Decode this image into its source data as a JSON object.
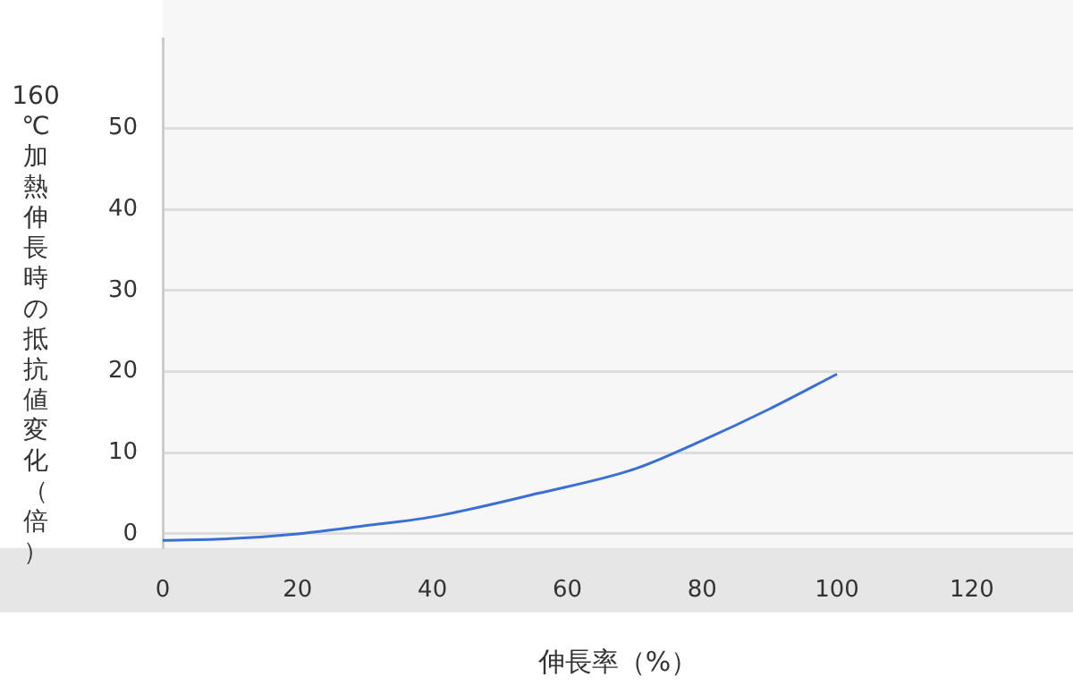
{
  "chart_data": {
    "type": "line",
    "xlabel": "伸長率（%）",
    "ylabel": "160℃加熱伸長時の抵抗値変化（倍）",
    "series": [
      {
        "color": "#3b6fd4",
        "x": [
          0,
          10,
          20,
          30,
          40,
          55.7,
          70,
          80,
          90,
          100
        ],
        "values": [
          -0.8,
          -0.6,
          0,
          1,
          2.1,
          5,
          8,
          11.5,
          15.4,
          19.7
        ]
      }
    ],
    "xlim": [
      0,
      135
    ],
    "xticks": [
      0,
      20,
      40,
      60,
      80,
      100,
      120
    ],
    "ylim": [
      -1.75,
      61
    ],
    "yticks": [
      0,
      10,
      20,
      30,
      40,
      50
    ],
    "grid": "y",
    "legend": false,
    "marker": "none",
    "line_style": "solid"
  }
}
